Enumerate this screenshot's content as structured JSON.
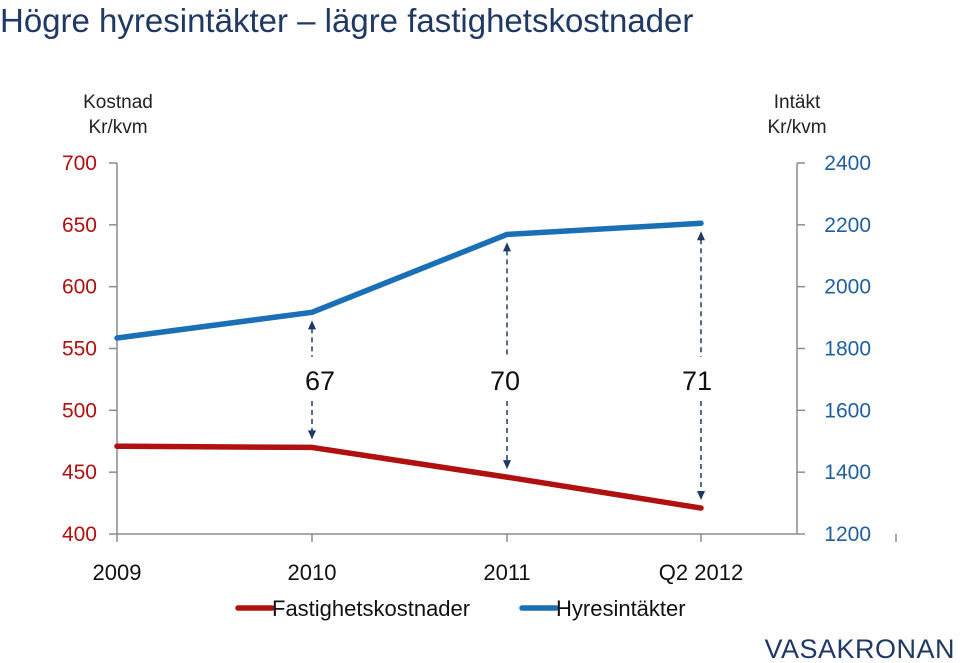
{
  "chart_data": {
    "type": "line",
    "title": "Högre hyresintäkter – lägre fastighetskostnader",
    "categories": [
      "2009",
      "2010",
      "2011",
      "Q2 2012"
    ],
    "y_left": {
      "label_line1": "Kostnad",
      "label_line2": "Kr/kvm",
      "min": 400,
      "max": 700,
      "ticks": [
        700,
        650,
        600,
        550,
        500,
        450,
        400
      ]
    },
    "y_right": {
      "label_line1": "Intäkt",
      "label_line2": "Kr/kvm",
      "min": 1200,
      "max": 2400,
      "ticks": [
        2400,
        2200,
        2000,
        1800,
        1600,
        1400,
        1200
      ]
    },
    "series": [
      {
        "name": "Fastighetskostnader",
        "axis": "left",
        "color": "#b01010",
        "values": [
          471,
          470,
          446,
          421
        ]
      },
      {
        "name": "Hyresintäkter",
        "axis": "right",
        "color": "#1a6fb5",
        "values": [
          1834,
          1917,
          2169,
          2205
        ]
      }
    ],
    "gap_labels": [
      {
        "category_index": 1,
        "text": "67"
      },
      {
        "category_index": 2,
        "text": "70"
      },
      {
        "category_index": 3,
        "text": "71"
      }
    ],
    "legend_position": "bottom"
  },
  "logo_text": "VASAKRONAN"
}
